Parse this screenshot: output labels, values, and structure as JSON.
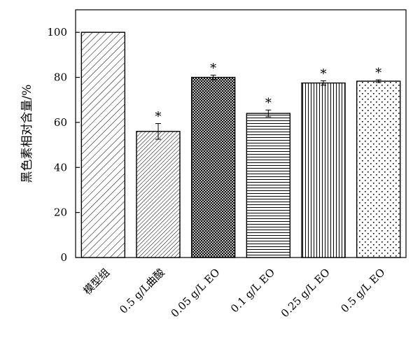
{
  "chart_data": {
    "type": "bar",
    "title": "",
    "xlabel": "",
    "ylabel": "黑色素相对含量/%",
    "ylim": [
      0,
      110
    ],
    "yticks": [
      0,
      20,
      40,
      60,
      80,
      100
    ],
    "grid": false,
    "legend": "none",
    "categories": [
      "模型组",
      "0.5 g/L曲酸",
      "0.05 g/L EO",
      "0.1 g/L EO",
      "0.25 g/L EO",
      "0.5 g/L EO"
    ],
    "values": [
      100,
      56,
      80,
      64,
      77.5,
      78.3
    ],
    "errors": [
      0,
      3.5,
      1,
      1.5,
      1,
      0.6
    ],
    "annotations": [
      "",
      "*",
      "*",
      "*",
      "*",
      "*"
    ],
    "patterns": [
      "diagonal",
      "diagonal-dense",
      "crosshatch",
      "horizontal",
      "vertical",
      "dots"
    ],
    "colors": {
      "stroke": "#000000",
      "fill": "#ffffff"
    }
  }
}
